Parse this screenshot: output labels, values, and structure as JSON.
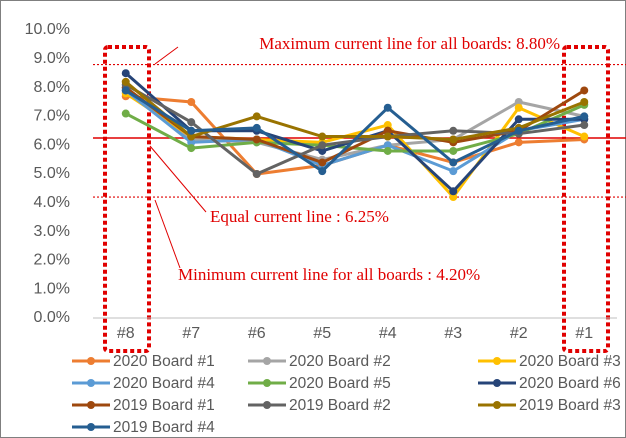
{
  "chart_data": {
    "type": "line",
    "categories": [
      "#8",
      "#7",
      "#6",
      "#5",
      "#4",
      "#3",
      "#2",
      "#1"
    ],
    "ylim": [
      0,
      10
    ],
    "yticks": [
      {
        "value": 0,
        "label": "0.0%"
      },
      {
        "value": 1,
        "label": "1.0%"
      },
      {
        "value": 2,
        "label": "2.0%"
      },
      {
        "value": 3,
        "label": "3.0%"
      },
      {
        "value": 4,
        "label": "4.0%"
      },
      {
        "value": 5,
        "label": "5.0%"
      },
      {
        "value": 6,
        "label": "6.0%"
      },
      {
        "value": 7,
        "label": "7.0%"
      },
      {
        "value": 8,
        "label": "8.0%"
      },
      {
        "value": 9,
        "label": "9.0%"
      },
      {
        "value": 10,
        "label": "10.0%"
      }
    ],
    "reference_lines": [
      {
        "value": 8.8,
        "style": "dotted",
        "color": "#e00000",
        "label": "Maximum current line for all boards: 8.80%"
      },
      {
        "value": 6.25,
        "style": "solid",
        "color": "#e00000",
        "label": "Equal current line : 6.25%"
      },
      {
        "value": 4.2,
        "style": "dotted",
        "color": "#e00000",
        "label": "Minimum current line for all boards : 4.20%"
      }
    ],
    "series": [
      {
        "name": "2020 Board #1",
        "color": "#ed7d31",
        "values": [
          7.7,
          7.5,
          5.0,
          5.3,
          6.0,
          5.4,
          6.1,
          6.2
        ]
      },
      {
        "name": "2020 Board #2",
        "color": "#a5a5a5",
        "values": [
          8.0,
          6.2,
          6.1,
          5.5,
          6.0,
          6.2,
          7.5,
          7.0
        ]
      },
      {
        "name": "2020 Board #3",
        "color": "#ffc000",
        "values": [
          7.8,
          6.3,
          6.2,
          6.1,
          6.7,
          4.2,
          7.3,
          6.3
        ]
      },
      {
        "name": "2020 Board #4",
        "color": "#5b9bd5",
        "values": [
          7.9,
          6.1,
          6.2,
          5.3,
          6.0,
          5.1,
          6.5,
          6.9
        ]
      },
      {
        "name": "2020 Board #5",
        "color": "#70ad47",
        "values": [
          7.1,
          5.9,
          6.1,
          6.0,
          5.8,
          5.8,
          6.4,
          7.4
        ]
      },
      {
        "name": "2020 Board #6",
        "color": "#264478",
        "values": [
          8.5,
          6.5,
          6.5,
          5.8,
          6.5,
          4.4,
          6.9,
          6.9
        ]
      },
      {
        "name": "2019 Board #1",
        "color": "#9e480e",
        "values": [
          8.0,
          6.3,
          6.2,
          5.4,
          6.5,
          6.1,
          6.5,
          7.9
        ]
      },
      {
        "name": "2019 Board #2",
        "color": "#636363",
        "values": [
          8.1,
          6.8,
          5.0,
          6.0,
          6.3,
          6.5,
          6.4,
          6.7
        ]
      },
      {
        "name": "2019 Board #3",
        "color": "#997300",
        "values": [
          8.2,
          6.3,
          7.0,
          6.3,
          6.3,
          6.2,
          6.6,
          7.5
        ]
      },
      {
        "name": "2019 Board #4",
        "color": "#255e91",
        "values": [
          7.9,
          6.5,
          6.6,
          5.1,
          7.3,
          5.4,
          6.5,
          7.0
        ]
      }
    ]
  }
}
